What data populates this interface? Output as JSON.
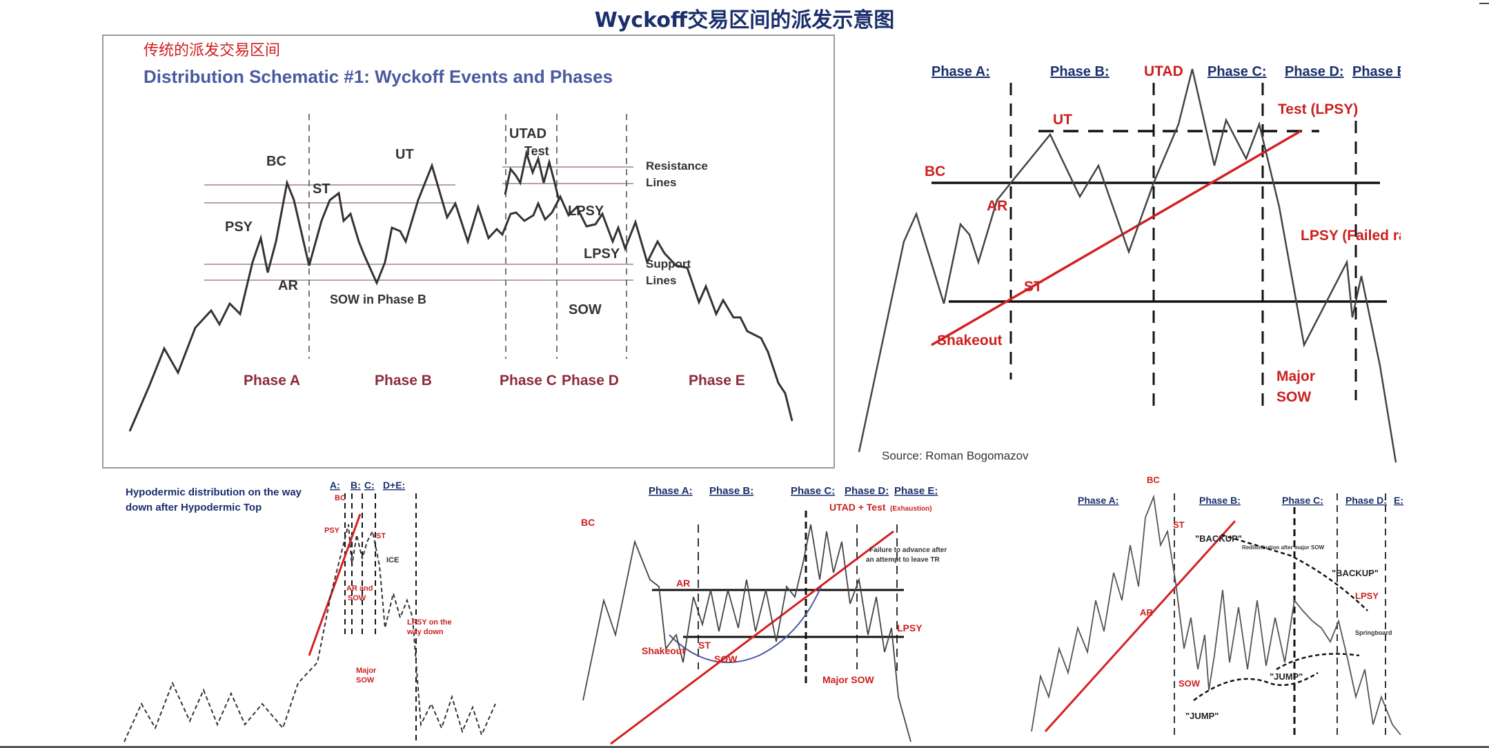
{
  "page": {
    "title": "Wyckoff交易区间的派发示意图"
  },
  "panel1": {
    "cn_caption": "传统的派发交易区间",
    "heading": "Distribution Schematic #1: Wyckoff Events and Phases",
    "events": [
      "PSY",
      "BC",
      "AR",
      "ST",
      "SOW in Phase B",
      "UT",
      "UTAD",
      "Test",
      "LPSY",
      "LPSY",
      "SOW"
    ],
    "lines": [
      "Resistance",
      "Lines",
      "Support",
      "Lines"
    ],
    "phases": [
      "Phase A",
      "Phase B",
      "Phase C",
      "Phase D",
      "Phase E"
    ]
  },
  "panel2": {
    "phases": [
      "Phase A:",
      "Phase B:",
      "Phase C:",
      "Phase D:",
      "Phase E:"
    ],
    "events": [
      "UTAD",
      "UT",
      "Test (LPSY)",
      "BC",
      "AR",
      "LPSY (Failed rally)",
      "ST",
      "Shakeout",
      "Major",
      "SOW"
    ],
    "source": "Source: Roman Bogomazov"
  },
  "panel3": {
    "caption_line1": "Hypodermic distribution on the way",
    "caption_line2": "down after Hypodermic Top",
    "phases": [
      "A:",
      "B:",
      "C:",
      "D+E:"
    ],
    "events": [
      "BC",
      "PSY",
      "ST",
      "ICE",
      "AR and",
      "SOW",
      "LPSY on the",
      "way down",
      "Major",
      "SOW"
    ]
  },
  "panel4": {
    "phases": [
      "Phase A:",
      "Phase B:",
      "Phase C:",
      "Phase D:",
      "Phase E:"
    ],
    "events": [
      "BC",
      "UTAD + Test",
      "(Exhaustion)",
      "Failure to advance after",
      "an attempt to leave TR",
      "AR",
      "ST",
      "Shakeout",
      "SOW",
      "LPSY",
      "Major SOW"
    ]
  },
  "panel5": {
    "phases": [
      "Phase A:",
      "Phase B:",
      "Phase C:",
      "Phase D:",
      "E:"
    ],
    "events": [
      "BC",
      "ST",
      "AR",
      "SOW",
      "\"BACKUP\"",
      "Redistribution after major SOW",
      "\"BACKUP\"",
      "LPSY",
      "Springboard",
      "\"JUMP\"",
      "\"JUMP\""
    ]
  },
  "colors": {
    "title": "#1a2f6b",
    "heading": "#4a5aa0",
    "phase_label": "#8b2a3c",
    "event_red": "#cc1f1f",
    "trend_red": "#d42020",
    "price_line": "#333333"
  }
}
